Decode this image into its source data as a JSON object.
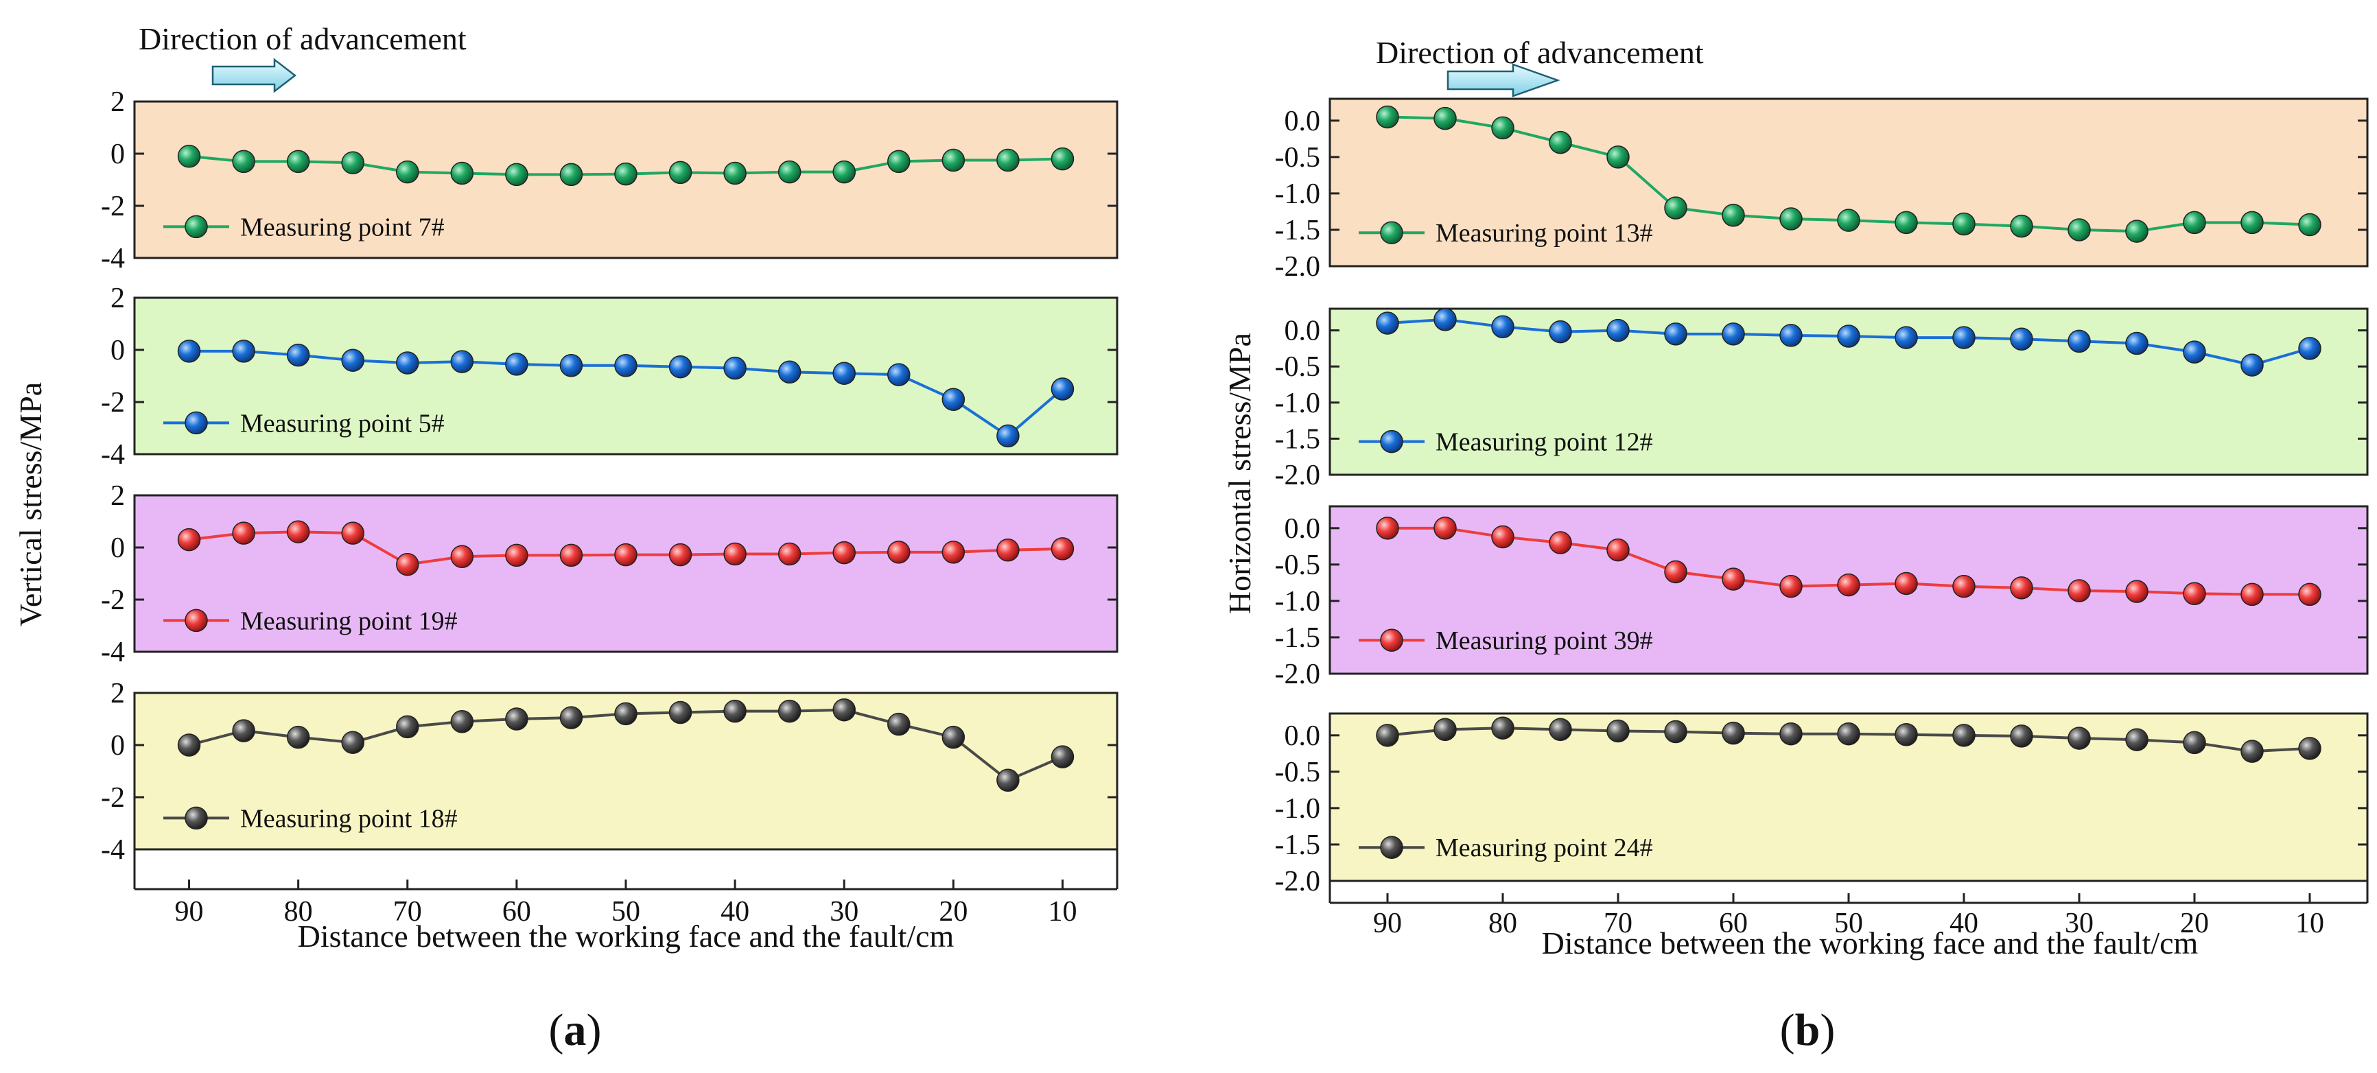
{
  "figure": {
    "caption_a": {
      "open": "(",
      "letter": "a",
      "close": ")"
    },
    "caption_b": {
      "open": "(",
      "letter": "b",
      "close": ")"
    }
  },
  "chart_data": [
    {
      "id": "a",
      "type": "line",
      "direction_label": "Direction of advancement",
      "xlabel": "Distance between the working face and the fault/cm",
      "ylabel": "Vertical stress/MPa",
      "x": [
        90,
        85,
        80,
        75,
        70,
        65,
        60,
        55,
        50,
        45,
        40,
        35,
        30,
        25,
        20,
        15,
        10
      ],
      "xticks": [
        90,
        80,
        70,
        60,
        50,
        40,
        30,
        20,
        10
      ],
      "xlim": [
        95,
        5
      ],
      "ylim": [
        -4,
        2
      ],
      "yticks": [
        2,
        0,
        -2,
        -4
      ],
      "ytick_labels": [
        "2",
        "0",
        "-2",
        "-4"
      ],
      "grid": false,
      "legend_position": "lower-left",
      "series": [
        {
          "name": "Measuring point 7#",
          "color": "#1fa862",
          "background": "#fbdfc2",
          "values": [
            -0.1,
            -0.3,
            -0.3,
            -0.35,
            -0.7,
            -0.75,
            -0.8,
            -0.8,
            -0.78,
            -0.72,
            -0.75,
            -0.7,
            -0.7,
            -0.3,
            -0.25,
            -0.25,
            -0.2
          ]
        },
        {
          "name": "Measuring point 5#",
          "color": "#1a6fd8",
          "background": "#dcf7c4",
          "values": [
            -0.05,
            -0.05,
            -0.2,
            -0.4,
            -0.5,
            -0.45,
            -0.55,
            -0.6,
            -0.6,
            -0.65,
            -0.7,
            -0.85,
            -0.9,
            -0.95,
            -1.9,
            -3.3,
            -1.5
          ]
        },
        {
          "name": "Measuring point 19#",
          "color": "#ee3c3c",
          "background": "#e8b8f6",
          "values": [
            0.3,
            0.55,
            0.6,
            0.55,
            -0.65,
            -0.35,
            -0.3,
            -0.3,
            -0.28,
            -0.28,
            -0.25,
            -0.25,
            -0.2,
            -0.18,
            -0.18,
            -0.1,
            -0.05
          ]
        },
        {
          "name": "Measuring point 18#",
          "color": "#4a4a4a",
          "background": "#f7f5c3",
          "values": [
            0.0,
            0.55,
            0.3,
            0.1,
            0.7,
            0.9,
            1.0,
            1.05,
            1.2,
            1.25,
            1.3,
            1.3,
            1.35,
            0.8,
            0.3,
            -1.35,
            -0.45
          ]
        }
      ]
    },
    {
      "id": "b",
      "type": "line",
      "direction_label": "Direction of advancement",
      "xlabel": "Distance between the working face and the fault/cm",
      "ylabel": "Horizontal stress/MPa",
      "x": [
        90,
        85,
        80,
        75,
        70,
        65,
        60,
        55,
        50,
        45,
        40,
        35,
        30,
        25,
        20,
        15,
        10
      ],
      "xticks": [
        90,
        80,
        70,
        60,
        50,
        40,
        30,
        20,
        10
      ],
      "xlim": [
        95,
        5
      ],
      "ylim": [
        -2.0,
        0.3
      ],
      "yticks": [
        0.0,
        -0.5,
        -1.0,
        -1.5,
        -2.0
      ],
      "ytick_labels": [
        "0.0",
        "-0.5",
        "-1.0",
        "-1.5",
        "-2.0"
      ],
      "grid": false,
      "legend_position": "lower-left",
      "series": [
        {
          "name": "Measuring point 13#",
          "color": "#1fa862",
          "background": "#fbdfc2",
          "values": [
            0.05,
            0.03,
            -0.1,
            -0.3,
            -0.5,
            -1.2,
            -1.3,
            -1.35,
            -1.37,
            -1.4,
            -1.42,
            -1.45,
            -1.5,
            -1.52,
            -1.4,
            -1.4,
            -1.43
          ]
        },
        {
          "name": "Measuring point 12#",
          "color": "#1a6fd8",
          "background": "#dcf7c4",
          "values": [
            0.1,
            0.15,
            0.05,
            -0.02,
            0.0,
            -0.05,
            -0.05,
            -0.07,
            -0.08,
            -0.1,
            -0.1,
            -0.12,
            -0.15,
            -0.18,
            -0.3,
            -0.48,
            -0.25
          ]
        },
        {
          "name": "Measuring point 39#",
          "color": "#ee3c3c",
          "background": "#e8b8f6",
          "values": [
            0.0,
            0.0,
            -0.12,
            -0.2,
            -0.3,
            -0.6,
            -0.7,
            -0.8,
            -0.78,
            -0.76,
            -0.8,
            -0.82,
            -0.86,
            -0.87,
            -0.9,
            -0.91,
            -0.91
          ]
        },
        {
          "name": "Measuring point 24#",
          "color": "#4a4a4a",
          "background": "#f7f5c3",
          "values": [
            0.0,
            0.08,
            0.1,
            0.08,
            0.06,
            0.05,
            0.03,
            0.02,
            0.02,
            0.01,
            0.0,
            -0.01,
            -0.04,
            -0.06,
            -0.1,
            -0.22,
            -0.18
          ]
        }
      ]
    }
  ]
}
